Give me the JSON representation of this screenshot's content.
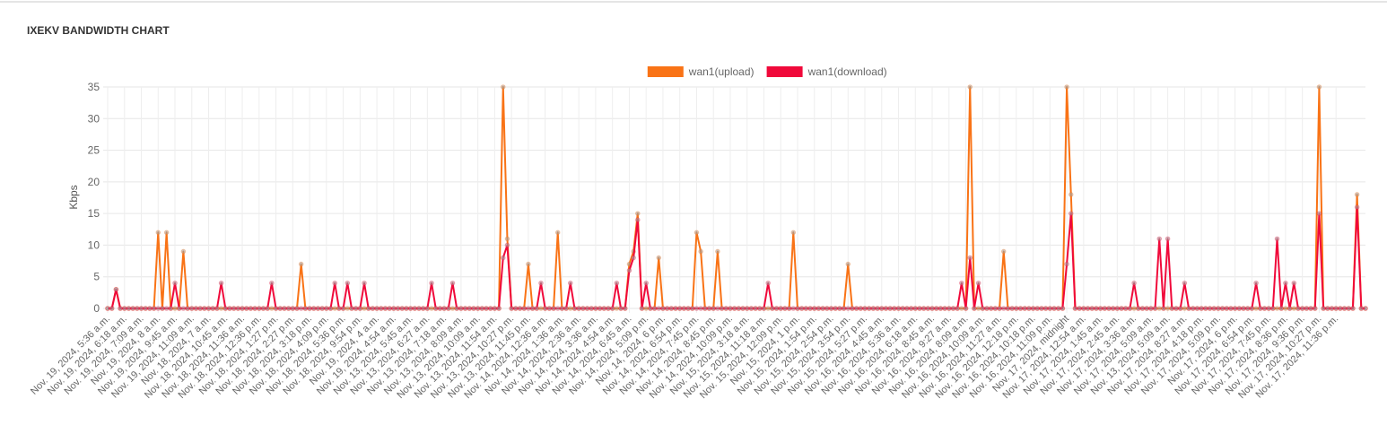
{
  "chart_data": {
    "type": "line",
    "title": "IXEKV BANDWIDTH CHART",
    "ylabel": "Kbps",
    "legend": "top",
    "grid": true,
    "ylim": [
      0,
      35
    ],
    "yticks": [
      0,
      5,
      10,
      15,
      20,
      25,
      30,
      35
    ],
    "categories": [
      "Nov. 19, 2024, 5:36 a.m.",
      null,
      null,
      null,
      "Nov. 19, 2024, 6:18 a.m.",
      null,
      null,
      null,
      "Nov. 19, 2024, 7:09 a.m.",
      null,
      null,
      null,
      "Nov. 19, 2024, 8 a.m.",
      null,
      null,
      null,
      "Nov. 19, 2024, 9:45 a.m.",
      null,
      null,
      null,
      "Nov. 19, 2024, 11:09 a.m.",
      null,
      null,
      null,
      "Nov. 18, 2024, 7 a.m.",
      null,
      null,
      null,
      "Nov. 18, 2024, 10:45 a.m.",
      null,
      null,
      null,
      "Nov. 18, 2024, 11:36 a.m.",
      null,
      null,
      null,
      "Nov. 18, 2024, 12:36 p.m.",
      null,
      null,
      null,
      "Nov. 18, 2024, 1:27 p.m.",
      null,
      null,
      null,
      "Nov. 18, 2024, 2:27 p.m.",
      null,
      null,
      null,
      "Nov. 18, 2024, 3:18 p.m.",
      null,
      null,
      null,
      "Nov. 18, 2024, 4:09 p.m.",
      null,
      null,
      null,
      "Nov. 18, 2024, 5:36 p.m.",
      null,
      null,
      null,
      "Nov. 18, 2024, 9:54 p.m.",
      null,
      null,
      null,
      "Nov. 19, 2024, 4 a.m.",
      null,
      null,
      null,
      "Nov. 19, 2024, 4:54 a.m.",
      null,
      null,
      null,
      "Nov. 13, 2024, 5:45 a.m.",
      null,
      null,
      null,
      "Nov. 13, 2024, 6:27 a.m.",
      null,
      null,
      null,
      "Nov. 13, 2024, 7:18 a.m.",
      null,
      null,
      null,
      "Nov. 13, 2024, 8:09 a.m.",
      null,
      null,
      null,
      "Nov. 13, 2024, 10:09 a.m.",
      null,
      null,
      null,
      "Nov. 13, 2024, 11:54 a.m.",
      null,
      null,
      null,
      "Nov. 13, 2024, 10:27 p.m.",
      null,
      null,
      null,
      "Nov. 13, 2024, 11:45 p.m.",
      null,
      null,
      null,
      "Nov. 14, 2024, 12:36 a.m.",
      null,
      null,
      null,
      "Nov. 14, 2024, 1:36 a.m.",
      null,
      null,
      null,
      "Nov. 14, 2024, 2:36 a.m.",
      null,
      null,
      null,
      "Nov. 14, 2024, 3:36 a.m.",
      null,
      null,
      null,
      "Nov. 14, 2024, 4:54 a.m.",
      null,
      null,
      null,
      "Nov. 14, 2024, 6:45 a.m.",
      null,
      null,
      null,
      "Nov. 14, 2024, 5:09 p.m.",
      null,
      null,
      null,
      "Nov. 14, 2024, 6 p.m.",
      null,
      null,
      null,
      "Nov. 14, 2024, 6:54 p.m.",
      null,
      null,
      null,
      "Nov. 14, 2024, 7:45 p.m.",
      null,
      null,
      null,
      "Nov. 14, 2024, 8:45 p.m.",
      null,
      null,
      null,
      "Nov. 14, 2024, 10:09 p.m.",
      null,
      null,
      null,
      "Nov. 15, 2024, 3:18 a.m.",
      null,
      null,
      null,
      "Nov. 15, 2024, 11:18 a.m.",
      null,
      null,
      null,
      "Nov. 15, 2024, 12:09 p.m.",
      null,
      null,
      null,
      "Nov. 15, 2024, 1 p.m.",
      null,
      null,
      null,
      "Nov. 15, 2024, 1:54 p.m.",
      null,
      null,
      null,
      "Nov. 15, 2024, 2:54 p.m.",
      null,
      null,
      null,
      "Nov. 15, 2024, 3:54 p.m.",
      null,
      null,
      null,
      "Nov. 15, 2024, 5:27 p.m.",
      null,
      null,
      null,
      "Nov. 16, 2024, 4:45 a.m.",
      null,
      null,
      null,
      "Nov. 16, 2024, 5:36 a.m.",
      null,
      null,
      null,
      "Nov. 16, 2024, 6:18 a.m.",
      null,
      null,
      null,
      "Nov. 16, 2024, 8:45 a.m.",
      null,
      null,
      null,
      "Nov. 16, 2024, 9:27 a.m.",
      null,
      null,
      null,
      "Nov. 16, 2024, 8:09 a.m.",
      null,
      null,
      null,
      "Nov. 16, 2024, 10:09 a.m.",
      null,
      null,
      null,
      "Nov. 16, 2024, 11:27 a.m.",
      null,
      null,
      null,
      "Nov. 16, 2024, 12:18 p.m.",
      null,
      null,
      null,
      "Nov. 16, 2024, 10:18 p.m.",
      null,
      null,
      null,
      "Nov. 16, 2024, 11:09 p.m.",
      null,
      null,
      null,
      "Nov. 17, 2024, midnight",
      null,
      null,
      null,
      "Nov. 17, 2024, 12:54 a.m.",
      null,
      null,
      null,
      "Nov. 17, 2024, 1:45 a.m.",
      null,
      null,
      null,
      "Nov. 17, 2024, 2:45 a.m.",
      null,
      null,
      null,
      "Nov. 17, 2024, 3:36 a.m.",
      null,
      null,
      null,
      "Nov. 17, 2024, 5:09 a.m.",
      null,
      null,
      null,
      "Nov. 13, 2024, 5:09 a.m.",
      null,
      null,
      null,
      "Nov. 17, 2024, 8:27 a.m.",
      null,
      null,
      null,
      "Nov. 17, 2024, 4:18 p.m.",
      null,
      null,
      null,
      "Nov. 17, 2024, 5:09 p.m.",
      null,
      null,
      null,
      "Nov. 17, 2024, 6 p.m.",
      null,
      null,
      null,
      "Nov. 17, 2024, 6:54 p.m.",
      null,
      null,
      null,
      "Nov. 17, 2024, 7:45 p.m.",
      null,
      null,
      null,
      "Nov. 17, 2024, 8:36 p.m.",
      null,
      null,
      null,
      "Nov. 17, 2024, 9:36 p.m.",
      null,
      null,
      null,
      "Nov. 17, 2024, 10:27 p.m.",
      null,
      null,
      null,
      "Nov. 17, 2024, 11:36 p.m.",
      null,
      null,
      null,
      null,
      null,
      null,
      null
    ],
    "series": [
      {
        "name": "wan1(upload)",
        "color": "#f97316",
        "values": [
          0,
          0,
          3,
          0,
          0,
          0,
          0,
          0,
          0,
          0,
          0,
          0,
          12,
          0,
          12,
          0,
          0,
          0,
          9,
          0,
          0,
          0,
          0,
          0,
          0,
          0,
          0,
          0,
          0,
          0,
          0,
          0,
          0,
          0,
          0,
          0,
          0,
          0,
          0,
          0,
          0,
          0,
          0,
          0,
          0,
          0,
          7,
          0,
          0,
          0,
          0,
          0,
          0,
          0,
          0,
          0,
          0,
          0,
          0,
          0,
          0,
          0,
          0,
          0,
          0,
          0,
          0,
          0,
          0,
          0,
          0,
          0,
          0,
          0,
          0,
          0,
          0,
          0,
          0,
          0,
          0,
          0,
          0,
          0,
          0,
          0,
          0,
          0,
          0,
          0,
          0,
          0,
          0,
          0,
          35,
          11,
          0,
          0,
          0,
          0,
          7,
          0,
          0,
          0,
          0,
          0,
          0,
          12,
          0,
          0,
          0,
          0,
          0,
          0,
          0,
          0,
          0,
          0,
          0,
          0,
          0,
          0,
          0,
          0,
          7,
          9,
          15,
          0,
          0,
          0,
          0,
          8,
          0,
          0,
          0,
          0,
          0,
          0,
          0,
          0,
          12,
          9,
          0,
          0,
          0,
          9,
          0,
          0,
          0,
          0,
          0,
          0,
          0,
          0,
          0,
          0,
          0,
          0,
          0,
          0,
          0,
          0,
          0,
          12,
          0,
          0,
          0,
          0,
          0,
          0,
          0,
          0,
          0,
          0,
          0,
          0,
          7,
          0,
          0,
          0,
          0,
          0,
          0,
          0,
          0,
          0,
          0,
          0,
          0,
          0,
          0,
          0,
          0,
          0,
          0,
          0,
          0,
          0,
          0,
          0,
          0,
          0,
          0,
          0,
          0,
          35,
          0,
          0,
          0,
          0,
          0,
          0,
          0,
          9,
          0,
          0,
          0,
          0,
          0,
          0,
          0,
          0,
          0,
          0,
          0,
          0,
          0,
          0,
          35,
          18,
          0,
          0,
          0,
          0,
          0,
          0,
          0,
          0,
          0,
          0,
          0,
          0,
          0,
          0,
          0,
          0,
          0,
          0,
          0,
          0,
          0,
          0,
          0,
          0,
          0,
          0,
          0,
          0,
          0,
          0,
          0,
          0,
          0,
          0,
          0,
          0,
          0,
          0,
          0,
          0,
          0,
          0,
          0,
          0,
          0,
          0,
          0,
          0,
          0,
          0,
          0,
          0,
          0,
          0,
          0,
          0,
          0,
          0,
          35,
          0,
          0,
          0,
          0,
          0,
          0,
          0,
          0,
          18,
          0,
          0
        ]
      },
      {
        "name": "wan1(download)",
        "color": "#f0093a",
        "values": [
          0,
          0,
          3,
          0,
          0,
          0,
          0,
          0,
          0,
          0,
          0,
          0,
          0,
          0,
          0,
          0,
          4,
          0,
          0,
          0,
          0,
          0,
          0,
          0,
          0,
          0,
          0,
          4,
          0,
          0,
          0,
          0,
          0,
          0,
          0,
          0,
          0,
          0,
          0,
          4,
          0,
          0,
          0,
          0,
          0,
          0,
          0,
          0,
          0,
          0,
          0,
          0,
          0,
          0,
          4,
          0,
          0,
          4,
          0,
          0,
          0,
          4,
          0,
          0,
          0,
          0,
          0,
          0,
          0,
          0,
          0,
          0,
          0,
          0,
          0,
          0,
          0,
          4,
          0,
          0,
          0,
          0,
          4,
          0,
          0,
          0,
          0,
          0,
          0,
          0,
          0,
          0,
          0,
          0,
          8,
          10,
          0,
          0,
          0,
          0,
          0,
          0,
          0,
          4,
          0,
          0,
          0,
          0,
          0,
          0,
          4,
          0,
          0,
          0,
          0,
          0,
          0,
          0,
          0,
          0,
          0,
          4,
          0,
          0,
          6,
          8,
          14,
          0,
          4,
          0,
          0,
          0,
          0,
          0,
          0,
          0,
          0,
          0,
          0,
          0,
          0,
          0,
          0,
          0,
          0,
          0,
          0,
          0,
          0,
          0,
          0,
          0,
          0,
          0,
          0,
          0,
          0,
          4,
          0,
          0,
          0,
          0,
          0,
          0,
          0,
          0,
          0,
          0,
          0,
          0,
          0,
          0,
          0,
          0,
          0,
          0,
          0,
          0,
          0,
          0,
          0,
          0,
          0,
          0,
          0,
          0,
          0,
          0,
          0,
          0,
          0,
          0,
          0,
          0,
          0,
          0,
          0,
          0,
          0,
          0,
          0,
          0,
          0,
          4,
          0,
          8,
          0,
          4,
          0,
          0,
          0,
          0,
          0,
          0,
          0,
          0,
          0,
          0,
          0,
          0,
          0,
          0,
          0,
          0,
          0,
          0,
          0,
          0,
          7,
          15,
          0,
          0,
          0,
          0,
          0,
          0,
          0,
          0,
          0,
          0,
          0,
          0,
          0,
          0,
          4,
          0,
          0,
          0,
          0,
          0,
          11,
          0,
          11,
          0,
          0,
          0,
          4,
          0,
          0,
          0,
          0,
          0,
          0,
          0,
          0,
          0,
          0,
          0,
          0,
          0,
          0,
          0,
          0,
          4,
          0,
          0,
          0,
          0,
          11,
          0,
          4,
          0,
          4,
          0,
          0,
          0,
          0,
          0,
          15,
          0,
          0,
          0,
          0,
          0,
          0,
          0,
          0,
          16,
          0,
          0
        ]
      }
    ]
  }
}
